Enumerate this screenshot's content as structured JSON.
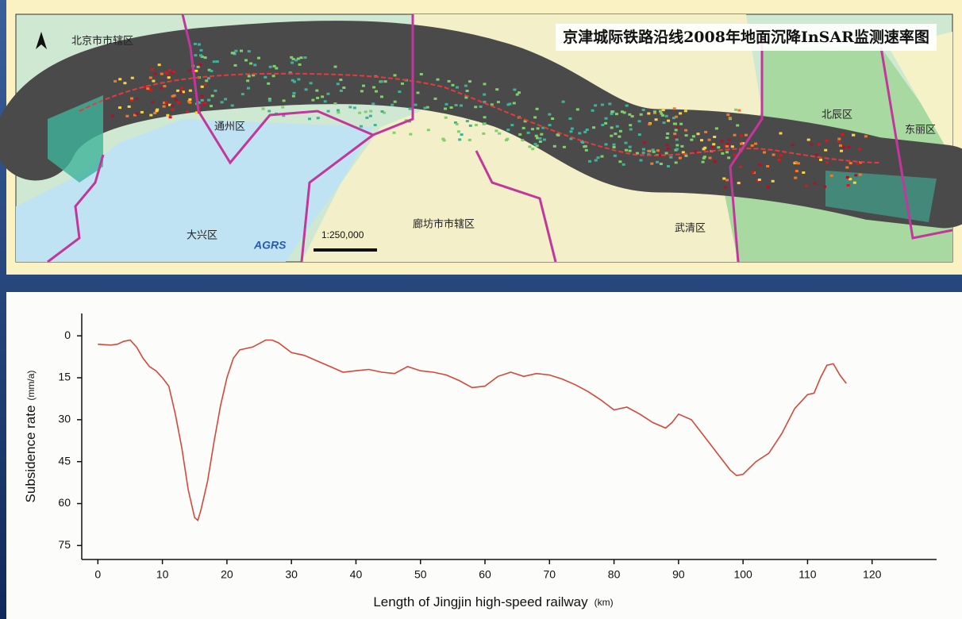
{
  "map": {
    "title": "京津城际铁路沿线2008年地面沉降InSAR监测速率图",
    "regions": [
      "北京市市辖区",
      "通州区",
      "大兴区",
      "廊坊市市辖区",
      "武清区",
      "北辰区",
      "东丽区"
    ],
    "scale": "1:250,000",
    "logo": "AGRS"
  },
  "chart_data": {
    "type": "line",
    "xlabel": "Length  of  Jingjin high-speed railway",
    "xunit": "(km)",
    "ylabel": "Subsidence rate",
    "yunit": "(mm/a)",
    "x": [
      0,
      2,
      3,
      4,
      5,
      6,
      7,
      8,
      9,
      10,
      11,
      12,
      13,
      14,
      15,
      15.5,
      16,
      17,
      18,
      19,
      20,
      21,
      22,
      24,
      26,
      27,
      28,
      30,
      32,
      34,
      36,
      38,
      40,
      42,
      44,
      46,
      48,
      50,
      52,
      54,
      56,
      58,
      60,
      62,
      64,
      66,
      68,
      70,
      72,
      74,
      76,
      78,
      80,
      82,
      84,
      86,
      88,
      89,
      90,
      92,
      94,
      96,
      98,
      99,
      100,
      102,
      104,
      106,
      108,
      110,
      111,
      112,
      113,
      114,
      115,
      116
    ],
    "series": [
      {
        "color": "#d4483a",
        "values": [
          3,
          3.3,
          3,
          2,
          1.5,
          4,
          8,
          11,
          12.5,
          15,
          18,
          28,
          40,
          55,
          65,
          66,
          62,
          52,
          38,
          25,
          15,
          8,
          5,
          4,
          1.5,
          1.5,
          2.5,
          6,
          7,
          9,
          11,
          13,
          12.5,
          12,
          13,
          13.5,
          11,
          12.5,
          13,
          14,
          16,
          18.5,
          18,
          14.5,
          13,
          14.5,
          13.5,
          14,
          15.5,
          17.5,
          20,
          23,
          26.5,
          25.5,
          28,
          31,
          33,
          31,
          28,
          30,
          36,
          42,
          48,
          50,
          49.5,
          45,
          42,
          35,
          26,
          21,
          20.5,
          15,
          10.5,
          10,
          14,
          17
        ]
      }
    ],
    "xlim": [
      -2.5,
      130
    ],
    "ylim": [
      -8,
      80
    ],
    "yinverted": true,
    "xticks": [
      0,
      10,
      20,
      30,
      40,
      50,
      60,
      70,
      80,
      90,
      100,
      110,
      120
    ],
    "yticks": [
      0,
      15,
      30,
      45,
      60,
      75
    ]
  }
}
